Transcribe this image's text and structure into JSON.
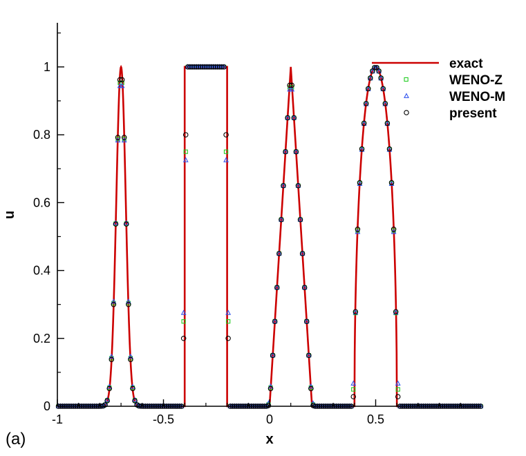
{
  "chart_data": {
    "type": "line",
    "panel_label": "(a)",
    "xlabel": "x",
    "ylabel": "u",
    "xlim": [
      -1,
      1
    ],
    "ylim": [
      0,
      1.13
    ],
    "xticks": [
      -1,
      -0.5,
      0,
      0.5
    ],
    "xtick_labels": [
      "-1",
      "-0.5",
      "0",
      "0.5"
    ],
    "yticks": [
      0,
      0.2,
      0.4,
      0.6,
      0.8,
      1
    ],
    "ytick_labels": [
      "0",
      "0.2",
      "0.4",
      "0.6",
      "0.8",
      "1"
    ],
    "legend_position": "top-right",
    "series": [
      {
        "name": "exact",
        "style": "line",
        "color": "#cc0000"
      },
      {
        "name": "WENO-Z",
        "style": "square",
        "color": "#22cc22"
      },
      {
        "name": "WENO-M",
        "style": "triangle",
        "color": "#3355ee"
      },
      {
        "name": "present",
        "style": "circle",
        "color": "#000000"
      }
    ],
    "exact": {
      "gaussian": {
        "center": -0.7,
        "peak": 1.0,
        "width_param": 0.0005
      },
      "square_wave": {
        "x_start": -0.4,
        "x_end": -0.2,
        "height": 1.0
      },
      "triangle": {
        "center": 0.1,
        "peak": 1.0,
        "half_width": 0.1
      },
      "ellipse": {
        "center": 0.5,
        "peak": 1.0,
        "half_width": 0.1
      }
    },
    "samples": {
      "x_start": -0.995,
      "x_step": 0.01,
      "count": 200
    }
  }
}
